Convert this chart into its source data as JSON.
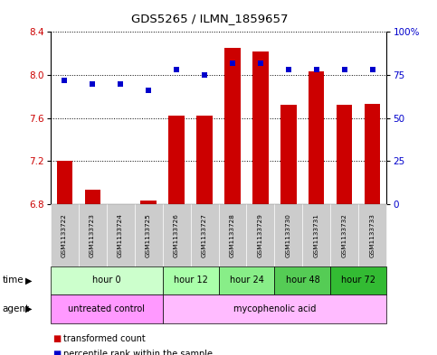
{
  "title": "GDS5265 / ILMN_1859657",
  "samples": [
    "GSM1133722",
    "GSM1133723",
    "GSM1133724",
    "GSM1133725",
    "GSM1133726",
    "GSM1133727",
    "GSM1133728",
    "GSM1133729",
    "GSM1133730",
    "GSM1133731",
    "GSM1133732",
    "GSM1133733"
  ],
  "transformed_count": [
    7.2,
    6.93,
    6.8,
    6.83,
    7.62,
    7.62,
    8.25,
    8.22,
    7.72,
    8.03,
    7.72,
    7.73
  ],
  "percentile_rank": [
    72,
    70,
    70,
    66,
    78,
    75,
    82,
    82,
    78,
    78,
    78,
    78
  ],
  "ylim_left": [
    6.8,
    8.4
  ],
  "ylim_right": [
    0,
    100
  ],
  "yticks_left": [
    6.8,
    7.2,
    7.6,
    8.0,
    8.4
  ],
  "yticks_right": [
    0,
    25,
    50,
    75,
    100
  ],
  "ytick_labels_right": [
    "0",
    "25",
    "50",
    "75",
    "100%"
  ],
  "bar_color": "#cc0000",
  "dot_color": "#0000cc",
  "bar_bottom": 6.8,
  "time_groups": [
    {
      "label": "hour 0",
      "start": 0,
      "end": 4,
      "color": "#ccffcc"
    },
    {
      "label": "hour 12",
      "start": 4,
      "end": 6,
      "color": "#aaffaa"
    },
    {
      "label": "hour 24",
      "start": 6,
      "end": 8,
      "color": "#88ee88"
    },
    {
      "label": "hour 48",
      "start": 8,
      "end": 10,
      "color": "#55cc55"
    },
    {
      "label": "hour 72",
      "start": 10,
      "end": 12,
      "color": "#33bb33"
    }
  ],
  "agent_groups": [
    {
      "label": "untreated control",
      "start": 0,
      "end": 4,
      "color": "#ff99ff"
    },
    {
      "label": "mycophenolic acid",
      "start": 4,
      "end": 12,
      "color": "#ffbbff"
    }
  ],
  "row_label_time": "time",
  "row_label_agent": "agent",
  "legend_bar_label": "transformed count",
  "legend_dot_label": "percentile rank within the sample",
  "left_tick_color": "#cc0000",
  "right_tick_color": "#0000cc",
  "xticklabel_bg": "#cccccc",
  "bg_color": "#ffffff",
  "fig_width": 4.83,
  "fig_height": 3.93,
  "dpi": 100
}
